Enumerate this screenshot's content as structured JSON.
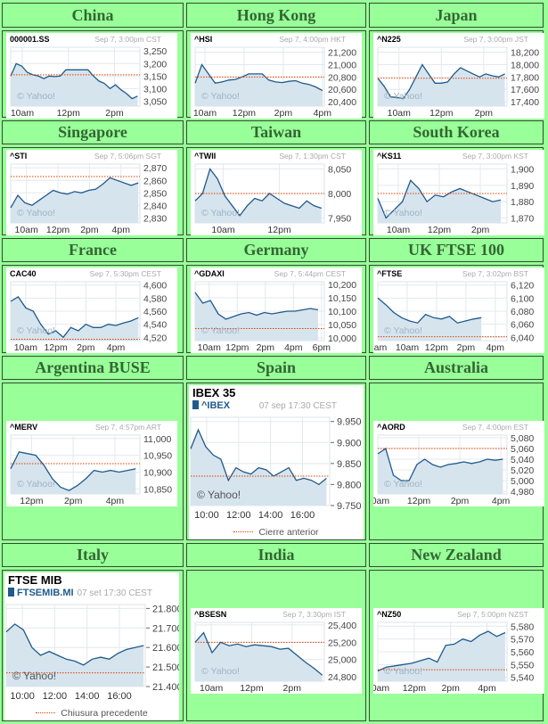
{
  "colors": {
    "background": "#99ff99",
    "title": "#336633",
    "line": "#1f5a8c",
    "fill": "#d6e4ee",
    "prev_close": "#e04000",
    "grid": "#e4e8ee"
  },
  "watermark": "© Yahoo!",
  "chart_data": [
    {
      "region": "China",
      "type": "area",
      "symbol": "000001.SS",
      "timestamp": "Sep 7, 3:00pm CST",
      "xlim": [
        9.5,
        15.1
      ],
      "session": [
        9.5,
        15.0
      ],
      "xticks": [
        {
          "label": "10am",
          "t": 10
        },
        {
          "label": "12pm",
          "t": 12
        },
        {
          "label": "2pm",
          "t": 14
        }
      ],
      "yticks": [
        {
          "label": "3,250",
          "v": 3250
        },
        {
          "label": "3,200",
          "v": 3200
        },
        {
          "label": "3,150",
          "v": 3150
        },
        {
          "label": "3,100",
          "v": 3100
        },
        {
          "label": "3,050",
          "v": 3050
        }
      ],
      "yticks_shown": [
        "3,250",
        "3,200",
        "3,150",
        "3,100",
        "3,050"
      ],
      "ylim": [
        3030,
        3265
      ],
      "prev_close": 3155,
      "values": [
        3150,
        3200,
        3190,
        3165,
        3155,
        3150,
        3140,
        3150,
        3148,
        3150,
        3175,
        3175,
        3175,
        3175,
        3175,
        3150,
        3130,
        3120,
        3100,
        3115,
        3095,
        3080,
        3060,
        3070
      ]
    },
    {
      "region": "Hong Kong",
      "type": "area",
      "symbol": "^HSI",
      "timestamp": "Sep 7, 4:00pm HKT",
      "xlim": [
        9.5,
        16.1
      ],
      "session": [
        9.5,
        16.0
      ],
      "xticks": [
        {
          "label": "10am",
          "t": 10
        },
        {
          "label": "12pm",
          "t": 12
        },
        {
          "label": "2pm",
          "t": 14
        },
        {
          "label": "4pm",
          "t": 16
        }
      ],
      "yticks": [
        {
          "label": "21,200",
          "v": 21200
        },
        {
          "label": "21,000",
          "v": 21000
        },
        {
          "label": "20,800",
          "v": 20800
        },
        {
          "label": "20,600",
          "v": 20600
        },
        {
          "label": "20,400",
          "v": 20400
        }
      ],
      "ylim": [
        20330,
        21280
      ],
      "prev_close": 20800,
      "values": [
        20700,
        21000,
        20850,
        20700,
        20720,
        20750,
        20760,
        20800,
        20850,
        20850,
        20850,
        20750,
        20720,
        20710,
        20730,
        20740,
        20700,
        20680,
        20640,
        20580
      ]
    },
    {
      "region": "Japan",
      "type": "area",
      "symbol": "^N225",
      "timestamp": "Sep 7, 3:00pm JST",
      "xlim": [
        9.0,
        15.1
      ],
      "session": [
        9.0,
        15.0
      ],
      "xticks": [
        {
          "label": "10am",
          "t": 10
        },
        {
          "label": "12pm",
          "t": 12
        },
        {
          "label": "2pm",
          "t": 14
        }
      ],
      "yticks": [
        {
          "label": "18,200",
          "v": 18200
        },
        {
          "label": "18,000",
          "v": 18000
        },
        {
          "label": "17,800",
          "v": 17800
        },
        {
          "label": "17,600",
          "v": 17600
        },
        {
          "label": "17,400",
          "v": 17400
        }
      ],
      "ylim": [
        17330,
        18280
      ],
      "prev_close": 17780,
      "values": [
        17780,
        17650,
        17480,
        17470,
        17450,
        17600,
        17800,
        18000,
        17850,
        17700,
        17700,
        17720,
        17850,
        17950,
        17900,
        17850,
        17800,
        17850,
        17820,
        17800,
        17850
      ]
    },
    {
      "region": "Singapore",
      "type": "area",
      "symbol": "^STI",
      "timestamp": "Sep 7, 5:06pm SGT",
      "xlim": [
        9.0,
        17.2
      ],
      "session": [
        9.0,
        17.1
      ],
      "xticks": [
        {
          "label": "10am",
          "t": 10
        },
        {
          "label": "12pm",
          "t": 12
        },
        {
          "label": "2pm",
          "t": 14
        },
        {
          "label": "4pm",
          "t": 16
        }
      ],
      "yticks": [
        {
          "label": "2,870",
          "v": 2870
        },
        {
          "label": "2,860",
          "v": 2860
        },
        {
          "label": "2,850",
          "v": 2850
        },
        {
          "label": "2,840",
          "v": 2840
        },
        {
          "label": "2,830",
          "v": 2830
        }
      ],
      "ylim": [
        2826,
        2873
      ],
      "prev_close": 2863,
      "values": [
        2838,
        2848,
        2842,
        2840,
        2844,
        2848,
        2852,
        2850,
        2849,
        2851,
        2850,
        2852,
        2853,
        2857,
        2862,
        2860,
        2858,
        2856,
        2858
      ]
    },
    {
      "region": "Taiwan",
      "type": "area",
      "symbol": "^TWII",
      "timestamp": "Sep 7, 1:30pm CST",
      "xlim": [
        9.0,
        13.6
      ],
      "session": [
        9.0,
        13.5
      ],
      "xticks": [
        {
          "label": "10am",
          "t": 10
        },
        {
          "label": "12pm",
          "t": 12
        }
      ],
      "yticks": [
        {
          "label": "8,050",
          "v": 8050
        },
        {
          "label": "8,000",
          "v": 8000
        },
        {
          "label": "7,950",
          "v": 7950
        }
      ],
      "ylim": [
        7940,
        8060
      ],
      "prev_close": 8000,
      "values": [
        7985,
        8000,
        8050,
        8030,
        7995,
        7975,
        7955,
        7975,
        7990,
        7985,
        8000,
        7990,
        7980,
        7975,
        7970,
        7985,
        7975,
        7970
      ]
    },
    {
      "region": "South Korea",
      "type": "area",
      "symbol": "^KS11",
      "timestamp": "Sep 7, 3:00pm KST",
      "xlim": [
        9.0,
        15.3
      ],
      "session": [
        9.0,
        15.0
      ],
      "xticks": [
        {
          "label": "10am",
          "t": 10
        },
        {
          "label": "12pm",
          "t": 12
        },
        {
          "label": "2pm",
          "t": 14
        }
      ],
      "yticks": [
        {
          "label": "1,900",
          "v": 1900
        },
        {
          "label": "1,890",
          "v": 1890
        },
        {
          "label": "1,880",
          "v": 1880
        },
        {
          "label": "1,870",
          "v": 1870
        }
      ],
      "ylim": [
        1867,
        1903
      ],
      "prev_close": 1885,
      "values": [
        1882,
        1870,
        1875,
        1880,
        1893,
        1888,
        1880,
        1884,
        1883,
        1886,
        1888,
        1886,
        1884,
        1882,
        1880,
        1881
      ]
    },
    {
      "region": "France",
      "type": "area",
      "symbol": "CAC40",
      "timestamp": "Sep 7, 5:30pm CEST",
      "xlim": [
        9.0,
        17.6
      ],
      "session": [
        9.0,
        17.5
      ],
      "xticks": [
        {
          "label": "10am",
          "t": 10
        },
        {
          "label": "12pm",
          "t": 12
        },
        {
          "label": "2pm",
          "t": 14
        },
        {
          "label": "4pm",
          "t": 16
        }
      ],
      "yticks": [
        {
          "label": "4,600",
          "v": 4600
        },
        {
          "label": "4,580",
          "v": 4580
        },
        {
          "label": "4,560",
          "v": 4560
        },
        {
          "label": "4,540",
          "v": 4540
        },
        {
          "label": "4,520",
          "v": 4520
        }
      ],
      "ylim": [
        4515,
        4605
      ],
      "prev_close": 4517,
      "values": [
        4575,
        4582,
        4565,
        4560,
        4540,
        4525,
        4530,
        4520,
        4535,
        4530,
        4540,
        4535,
        4535,
        4540,
        4538,
        4542,
        4545,
        4550
      ]
    },
    {
      "region": "Germany",
      "type": "area",
      "symbol": "^GDAXI",
      "timestamp": "Sep 7, 5:44pm CEST",
      "xlim": [
        9.0,
        18.2
      ],
      "session": [
        9.0,
        17.75
      ],
      "xticks": [
        {
          "label": "10am",
          "t": 10
        },
        {
          "label": "12pm",
          "t": 12
        },
        {
          "label": "2pm",
          "t": 14
        },
        {
          "label": "4pm",
          "t": 16
        },
        {
          "label": "6pm",
          "t": 18
        }
      ],
      "yticks": [
        {
          "label": "10,200",
          "v": 10200
        },
        {
          "label": "10,150",
          "v": 10150
        },
        {
          "label": "10,100",
          "v": 10100
        },
        {
          "label": "10,050",
          "v": 10050
        },
        {
          "label": "10,000",
          "v": 10000
        }
      ],
      "ylim": [
        9990,
        10210
      ],
      "prev_close": 10035,
      "values": [
        10170,
        10130,
        10140,
        10090,
        10070,
        10080,
        10090,
        10095,
        10085,
        10095,
        10090,
        10095,
        10100,
        10100,
        10105,
        10110,
        10105
      ]
    },
    {
      "region": "UK FTSE 100",
      "type": "area",
      "symbol": "^FTSE",
      "timestamp": "Sep 7, 3:02pm BST",
      "xlim": [
        8.0,
        16.8
      ],
      "session": [
        8.0,
        15.05
      ],
      "xticks": [
        {
          "label": "8am",
          "t": 8
        },
        {
          "label": "10am",
          "t": 10
        },
        {
          "label": "12pm",
          "t": 12
        },
        {
          "label": "2pm",
          "t": 14
        },
        {
          "label": "4pm",
          "t": 16
        }
      ],
      "yticks": [
        {
          "label": "6,120",
          "v": 6120
        },
        {
          "label": "6,100",
          "v": 6100
        },
        {
          "label": "6,080",
          "v": 6080
        },
        {
          "label": "6,060",
          "v": 6060
        },
        {
          "label": "6,040",
          "v": 6040
        }
      ],
      "ylim": [
        6035,
        6125
      ],
      "prev_close": 6041,
      "values": [
        6100,
        6090,
        6078,
        6070,
        6065,
        6062,
        6075,
        6070,
        6068,
        6072,
        6062,
        6065,
        6068,
        6070
      ]
    },
    {
      "region": "Argentina BUSE",
      "type": "area",
      "symbol": "^MERV",
      "timestamp": "Sep 7, 4:57pm ART",
      "xlim": [
        11.0,
        17.2
      ],
      "session": [
        11.0,
        17.0
      ],
      "xticks": [
        {
          "label": "12pm",
          "t": 12
        },
        {
          "label": "2pm",
          "t": 14
        },
        {
          "label": "4pm",
          "t": 16
        }
      ],
      "yticks": [
        {
          "label": "11,000",
          "v": 11000
        },
        {
          "label": "10,950",
          "v": 10950
        },
        {
          "label": "10,900",
          "v": 10900
        },
        {
          "label": "10,850",
          "v": 10850
        }
      ],
      "ylim": [
        10835,
        11010
      ],
      "prev_close": 10925,
      "values": [
        10910,
        10960,
        10955,
        10950,
        10920,
        10880,
        10855,
        10845,
        10860,
        10880,
        10905,
        10900,
        10905,
        10900,
        10905,
        10910
      ]
    },
    {
      "region": "Spain",
      "type": "area",
      "large": true,
      "title": "IBEX 35",
      "symbol": "^IBEX",
      "timestamp": "07 sep 17:30 CEST",
      "legend": "Cierre anterior",
      "xlim": [
        9.0,
        17.7
      ],
      "session": [
        9.0,
        17.5
      ],
      "xticks": [
        {
          "label": "10:00",
          "t": 10
        },
        {
          "label": "12:00",
          "t": 12
        },
        {
          "label": "14:00",
          "t": 14
        },
        {
          "label": "16:00",
          "t": 16
        }
      ],
      "yticks": [
        {
          "label": "9.950",
          "v": 9950
        },
        {
          "label": "9.900",
          "v": 9900
        },
        {
          "label": "9.850",
          "v": 9850
        },
        {
          "label": "9.800",
          "v": 9800
        },
        {
          "label": "9.750",
          "v": 9750
        }
      ],
      "ylim": [
        9750,
        9960
      ],
      "prev_close": 9820,
      "values": [
        9885,
        9930,
        9890,
        9870,
        9860,
        9810,
        9840,
        9830,
        9825,
        9840,
        9835,
        9820,
        9830,
        9840,
        9810,
        9815,
        9810,
        9800,
        9815
      ]
    },
    {
      "region": "Australia",
      "type": "area",
      "symbol": "^AORD",
      "timestamp": "Sep 7, 4:00pm EST",
      "xlim": [
        10.0,
        16.3
      ],
      "session": [
        10.0,
        16.1
      ],
      "xticks": [
        {
          "label": "10am",
          "t": 10
        },
        {
          "label": "12pm",
          "t": 12
        },
        {
          "label": "2pm",
          "t": 14
        },
        {
          "label": "4pm",
          "t": 16
        }
      ],
      "yticks": [
        {
          "label": "5,080",
          "v": 5080
        },
        {
          "label": "5,060",
          "v": 5060
        },
        {
          "label": "5,040",
          "v": 5040
        },
        {
          "label": "5,020",
          "v": 5020
        },
        {
          "label": "5,000",
          "v": 5000
        },
        {
          "label": "4,980",
          "v": 4980
        }
      ],
      "ylim": [
        4975,
        5085
      ],
      "prev_close": 5060,
      "values": [
        5050,
        5060,
        5010,
        5000,
        5000,
        5030,
        5040,
        5030,
        5025,
        5030,
        5032,
        5035,
        5032,
        5035,
        5040,
        5038,
        5040
      ]
    },
    {
      "region": "Italy",
      "type": "area",
      "large": true,
      "title": "FTSE MIB",
      "symbol": "FTSEMIB.MI",
      "timestamp": "07 set 17:30 CEST",
      "legend": "Chiusura precedente",
      "xlim": [
        9.0,
        17.6
      ],
      "session": [
        9.0,
        17.5
      ],
      "xticks": [
        {
          "label": "10:00",
          "t": 10
        },
        {
          "label": "12:00",
          "t": 12
        },
        {
          "label": "14:00",
          "t": 14
        },
        {
          "label": "16:00",
          "t": 16
        }
      ],
      "yticks": [
        {
          "label": "21.800",
          "v": 21800
        },
        {
          "label": "21.700",
          "v": 21700
        },
        {
          "label": "21.600",
          "v": 21600
        },
        {
          "label": "21.500",
          "v": 21500
        },
        {
          "label": "21.400",
          "v": 21400
        }
      ],
      "ylim": [
        21400,
        21820
      ],
      "prev_close": 21470,
      "values": [
        21680,
        21720,
        21690,
        21600,
        21560,
        21580,
        21560,
        21540,
        21530,
        21510,
        21540,
        21550,
        21540,
        21570,
        21590,
        21600,
        21610
      ]
    },
    {
      "region": "India",
      "type": "area",
      "symbol": "^BSESN",
      "timestamp": "Sep 7, 3:30pm IST",
      "xlim": [
        9.2,
        15.6
      ],
      "session": [
        9.2,
        15.5
      ],
      "xticks": [
        {
          "label": "10am",
          "t": 10
        },
        {
          "label": "12pm",
          "t": 12
        },
        {
          "label": "2pm",
          "t": 14
        }
      ],
      "yticks": [
        {
          "label": "25,400",
          "v": 25400
        },
        {
          "label": "25,200",
          "v": 25200
        },
        {
          "label": "25,000",
          "v": 25000
        },
        {
          "label": "24,800",
          "v": 24800
        }
      ],
      "ylim": [
        24750,
        25430
      ],
      "prev_close": 25200,
      "values": [
        25200,
        25310,
        25080,
        25200,
        25160,
        25180,
        25150,
        25170,
        25160,
        25150,
        25120,
        25130,
        25050,
        24970,
        24900,
        24820
      ]
    },
    {
      "region": "New Zealand",
      "type": "area",
      "symbol": "^NZ50",
      "timestamp": "Sep 7, 5:00pm NZST",
      "xlim": [
        10.0,
        17.1
      ],
      "session": [
        10.0,
        17.0
      ],
      "xticks": [
        {
          "label": "10am",
          "t": 10
        },
        {
          "label": "12pm",
          "t": 12
        },
        {
          "label": "2pm",
          "t": 14
        },
        {
          "label": "4pm",
          "t": 16
        }
      ],
      "yticks": [
        {
          "label": "5,580",
          "v": 5580
        },
        {
          "label": "5,570",
          "v": 5570
        },
        {
          "label": "5,560",
          "v": 5560
        },
        {
          "label": "5,550",
          "v": 5550
        },
        {
          "label": "5,540",
          "v": 5540
        }
      ],
      "ylim": [
        5537,
        5583
      ],
      "prev_close": 5546,
      "values": [
        5545,
        5548,
        5549,
        5550,
        5551,
        5553,
        5555,
        5552,
        5565,
        5566,
        5570,
        5568,
        5573,
        5576,
        5572,
        5575
      ]
    }
  ]
}
